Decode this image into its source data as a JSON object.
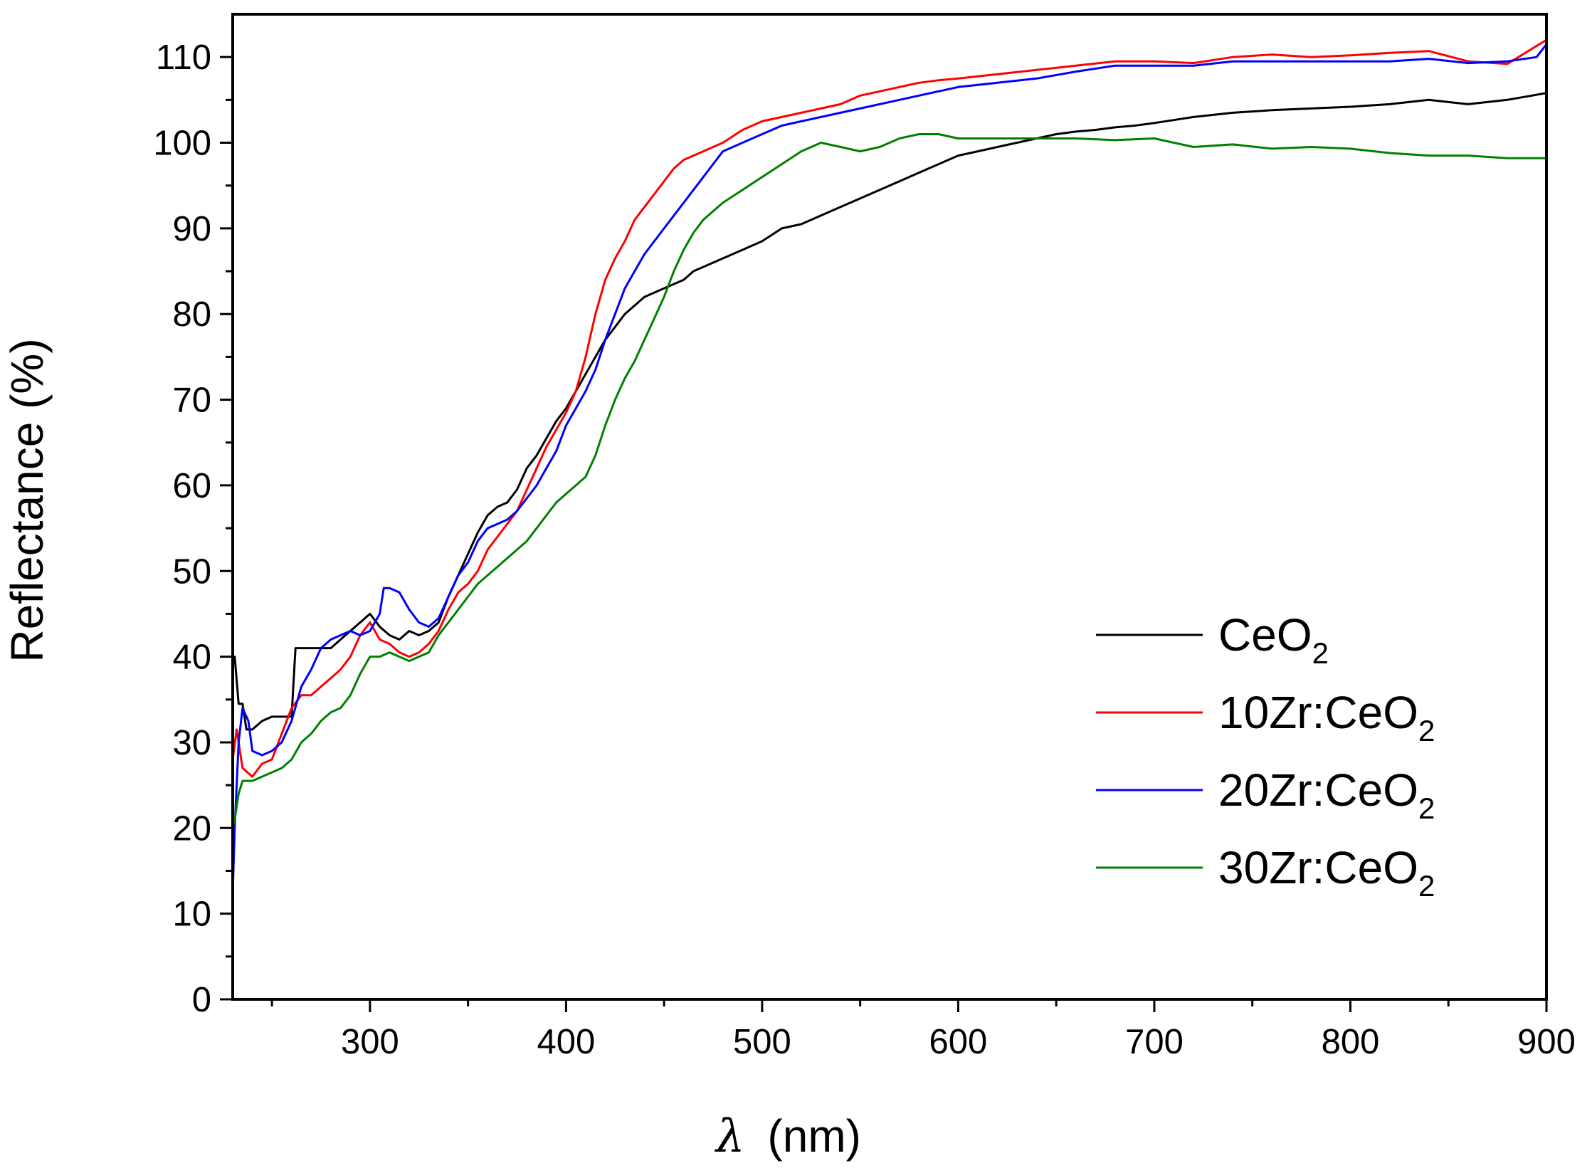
{
  "chart_data": {
    "type": "line",
    "title": "",
    "xlabel": "λ (nm)",
    "xlabel_symbol": "λ",
    "xlabel_unit": "(nm)",
    "ylabel": "Reflectance (%)",
    "xlim": [
      230,
      900
    ],
    "ylim": [
      0,
      115
    ],
    "xticks": [
      300,
      400,
      500,
      600,
      700,
      800,
      900
    ],
    "yticks": [
      0,
      10,
      20,
      30,
      40,
      50,
      60,
      70,
      80,
      90,
      100,
      110
    ],
    "grid": false,
    "legend_position": "bottom-right",
    "series": [
      {
        "name": "CeO2",
        "label_main": "CeO",
        "label_sub": "2",
        "color": "#000000",
        "x": [
          230,
          231,
          233,
          235,
          237,
          240,
          245,
          250,
          255,
          260,
          262,
          265,
          270,
          275,
          280,
          285,
          290,
          295,
          300,
          305,
          310,
          315,
          320,
          325,
          330,
          335,
          340,
          345,
          350,
          355,
          360,
          365,
          370,
          375,
          380,
          385,
          390,
          395,
          400,
          405,
          410,
          415,
          420,
          425,
          430,
          435,
          440,
          445,
          450,
          455,
          460,
          465,
          470,
          480,
          490,
          500,
          510,
          520,
          530,
          540,
          550,
          560,
          570,
          580,
          590,
          600,
          610,
          620,
          630,
          640,
          650,
          660,
          670,
          680,
          690,
          700,
          720,
          740,
          760,
          780,
          800,
          820,
          840,
          860,
          880,
          900
        ],
        "y": [
          40,
          40,
          34.5,
          34.5,
          31.5,
          31.5,
          32.5,
          33,
          33,
          33,
          41,
          41,
          41,
          41,
          41,
          42,
          43,
          44,
          45,
          43.5,
          42.5,
          42,
          43,
          42.5,
          43,
          44,
          47,
          49.5,
          52,
          54.5,
          56.5,
          57.5,
          58,
          59.5,
          62,
          63.5,
          65.5,
          67.5,
          69,
          71,
          73,
          75,
          77,
          78.5,
          80,
          81,
          82,
          82.5,
          83,
          83.5,
          84,
          85,
          85.5,
          86.5,
          87.5,
          88.5,
          90,
          90.5,
          91.5,
          92.5,
          93.5,
          94.5,
          95.5,
          96.5,
          97.5,
          98.5,
          99,
          99.5,
          100,
          100.5,
          101,
          101.3,
          101.5,
          101.8,
          102,
          102.3,
          103,
          103.5,
          103.8,
          104,
          104.2,
          104.5,
          105,
          104.5,
          105,
          105.8
        ]
      },
      {
        "name": "10Zr:CeO2",
        "label_main": "10Zr:CeO",
        "label_sub": "2",
        "color": "#ff0000",
        "x": [
          230,
          232,
          235,
          240,
          245,
          250,
          255,
          260,
          265,
          270,
          275,
          280,
          285,
          290,
          295,
          300,
          305,
          310,
          315,
          320,
          325,
          330,
          335,
          340,
          345,
          350,
          355,
          360,
          365,
          370,
          375,
          380,
          385,
          390,
          395,
          400,
          405,
          410,
          415,
          420,
          425,
          430,
          435,
          440,
          445,
          450,
          455,
          460,
          465,
          470,
          475,
          480,
          490,
          500,
          510,
          520,
          530,
          540,
          550,
          560,
          570,
          580,
          590,
          600,
          620,
          640,
          660,
          680,
          700,
          720,
          740,
          760,
          780,
          800,
          820,
          840,
          860,
          880,
          900
        ],
        "y": [
          28,
          31.5,
          27,
          26,
          27.5,
          28,
          31,
          34,
          35.5,
          35.5,
          36.5,
          37.5,
          38.5,
          40,
          42.5,
          44,
          42,
          41.5,
          40.5,
          40,
          40.5,
          41.5,
          43,
          45.5,
          47.5,
          48.5,
          50,
          52.5,
          54,
          55.5,
          57,
          59.5,
          62,
          64.5,
          66.5,
          68.5,
          71,
          75,
          80,
          84,
          86.5,
          88.5,
          91,
          92.5,
          94,
          95.5,
          97,
          98,
          98.5,
          99,
          99.5,
          100,
          101.5,
          102.5,
          103,
          103.5,
          104,
          104.5,
          105.5,
          106,
          106.5,
          107,
          107.3,
          107.5,
          108,
          108.5,
          109,
          109.5,
          109.5,
          109.3,
          110,
          110.3,
          110,
          110.2,
          110.5,
          110.7,
          109.5,
          109.2,
          112
        ]
      },
      {
        "name": "20Zr:CeO2",
        "label_main": "20Zr:CeO",
        "label_sub": "2",
        "color": "#0000ff",
        "x": [
          230,
          231,
          233,
          235,
          238,
          240,
          245,
          250,
          255,
          260,
          265,
          270,
          275,
          280,
          285,
          290,
          295,
          300,
          305,
          307,
          310,
          315,
          320,
          325,
          330,
          335,
          340,
          345,
          350,
          355,
          360,
          365,
          370,
          375,
          380,
          385,
          390,
          395,
          400,
          405,
          410,
          415,
          420,
          425,
          430,
          435,
          440,
          445,
          450,
          455,
          460,
          465,
          470,
          475,
          480,
          490,
          500,
          510,
          520,
          530,
          540,
          550,
          560,
          570,
          580,
          590,
          600,
          620,
          640,
          660,
          680,
          700,
          720,
          740,
          760,
          780,
          800,
          820,
          840,
          860,
          880,
          895,
          900
        ],
        "y": [
          12.5,
          20,
          30,
          34,
          32.5,
          29,
          28.5,
          29,
          30,
          32.5,
          36.5,
          38.5,
          41,
          42,
          42.5,
          43,
          42.5,
          43,
          45,
          48,
          48,
          47.5,
          45.5,
          44,
          43.5,
          44.5,
          47,
          49.5,
          51,
          53.5,
          55,
          55.5,
          56,
          57,
          58.5,
          60,
          62,
          64,
          67,
          69,
          71,
          73.5,
          77,
          80,
          83,
          85,
          87,
          88.5,
          90,
          91.5,
          93,
          94.5,
          96,
          97.5,
          99,
          100,
          101,
          102,
          102.5,
          103,
          103.5,
          104,
          104.5,
          105,
          105.5,
          106,
          106.5,
          107,
          107.5,
          108.3,
          109,
          109,
          109,
          109.5,
          109.5,
          109.5,
          109.5,
          109.5,
          109.8,
          109.3,
          109.5,
          110,
          111.5
        ]
      },
      {
        "name": "30Zr:CeO2",
        "label_main": "30Zr:CeO",
        "label_sub": "2",
        "color": "#008000",
        "x": [
          230,
          231,
          233,
          235,
          240,
          245,
          250,
          255,
          260,
          265,
          270,
          275,
          280,
          285,
          290,
          295,
          300,
          305,
          310,
          315,
          320,
          325,
          330,
          335,
          340,
          345,
          350,
          355,
          360,
          365,
          370,
          375,
          380,
          385,
          390,
          395,
          400,
          405,
          410,
          415,
          420,
          425,
          430,
          435,
          440,
          445,
          450,
          455,
          460,
          465,
          470,
          475,
          480,
          490,
          500,
          510,
          520,
          530,
          540,
          550,
          560,
          570,
          580,
          590,
          600,
          620,
          640,
          660,
          680,
          700,
          720,
          740,
          760,
          780,
          800,
          820,
          840,
          860,
          880,
          900
        ],
        "y": [
          20,
          21,
          24,
          25.5,
          25.5,
          26,
          26.5,
          27,
          28,
          30,
          31,
          32.5,
          33.5,
          34,
          35.5,
          38,
          40,
          40,
          40.5,
          40,
          39.5,
          40,
          40.5,
          42.5,
          44,
          45.5,
          47,
          48.5,
          49.5,
          50.5,
          51.5,
          52.5,
          53.5,
          55,
          56.5,
          58,
          59,
          60,
          61,
          63.5,
          67,
          70,
          72.5,
          74.5,
          77,
          79.5,
          82,
          85,
          87.5,
          89.5,
          91,
          92,
          93,
          94.5,
          96,
          97.5,
          99,
          100,
          99.5,
          99,
          99.5,
          100.5,
          101,
          101,
          100.5,
          100.5,
          100.5,
          100.5,
          100.3,
          100.5,
          99.5,
          99.8,
          99.3,
          99.5,
          99.3,
          98.8,
          98.5,
          98.5,
          98.2,
          98.2
        ]
      }
    ]
  }
}
